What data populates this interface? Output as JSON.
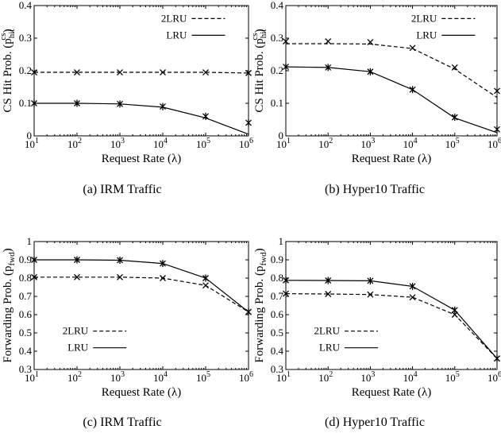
{
  "chart_data": [
    {
      "type": "line",
      "caption": "(a) IRM Traffic",
      "xlabel": "Request Rate (λ)",
      "ylabel": "CS Hit Prob. (p",
      "ylabel_sub": "hit",
      "ylabel_sup": "cs",
      "ylabel_close": ")",
      "x": [
        10,
        100,
        1000,
        10000,
        100000,
        1000000
      ],
      "x_ticks": [
        "10",
        "10",
        "10",
        "10",
        "10",
        "10"
      ],
      "x_tick_exp": [
        "1",
        "2",
        "3",
        "4",
        "5",
        "6"
      ],
      "xscale": "log",
      "xlim": [
        10,
        1000000
      ],
      "ylim": [
        0,
        0.4
      ],
      "y_ticks": [
        0,
        0.1,
        0.2,
        0.3,
        0.4
      ],
      "y_tick_labels": [
        "0",
        "0.1",
        "0.2",
        "0.3",
        "0.4"
      ],
      "legend_position": "top-right",
      "series": [
        {
          "name": "2LRU",
          "style": "dashed",
          "marker": "x",
          "values": [
            0.195,
            0.195,
            0.195,
            0.195,
            0.195,
            0.193
          ]
        },
        {
          "name": "LRU",
          "style": "solid",
          "marker": "asterisk",
          "values": [
            0.1,
            0.1,
            0.098,
            0.09,
            0.06,
            0.04
          ],
          "line_values": [
            0.1,
            0.1,
            0.098,
            0.088,
            0.055,
            0.005
          ]
        }
      ]
    },
    {
      "type": "line",
      "caption": "(b) Hyper10 Traffic",
      "xlabel": "Request Rate (λ)",
      "ylabel": "CS Hit Prob. (p",
      "ylabel_sub": "hit",
      "ylabel_sup": "cs",
      "ylabel_close": ")",
      "x": [
        10,
        100,
        1000,
        10000,
        100000,
        1000000
      ],
      "x_ticks": [
        "10",
        "10",
        "10",
        "10",
        "10",
        "10"
      ],
      "x_tick_exp": [
        "1",
        "2",
        "3",
        "4",
        "5",
        "6"
      ],
      "xscale": "log",
      "xlim": [
        10,
        1000000
      ],
      "ylim": [
        0,
        0.4
      ],
      "y_ticks": [
        0,
        0.1,
        0.2,
        0.3,
        0.4
      ],
      "y_tick_labels": [
        "0",
        "0.1",
        "0.2",
        "0.3",
        "0.4"
      ],
      "legend_position": "top-right",
      "series": [
        {
          "name": "2LRU",
          "style": "dashed",
          "marker": "x",
          "values": [
            0.29,
            0.29,
            0.288,
            0.27,
            0.21,
            0.138
          ],
          "line_values": [
            0.283,
            0.283,
            0.282,
            0.268,
            0.205,
            0.118
          ]
        },
        {
          "name": "LRU",
          "style": "solid",
          "marker": "asterisk",
          "values": [
            0.212,
            0.21,
            0.197,
            0.142,
            0.057,
            0.02
          ],
          "line_values": [
            0.212,
            0.21,
            0.197,
            0.142,
            0.055,
            0.01
          ]
        }
      ]
    },
    {
      "type": "line",
      "caption": "(c) IRM Traffic",
      "xlabel": "Request Rate (λ)",
      "ylabel": "Forwarding Prob. (p",
      "ylabel_sub": "fwd",
      "ylabel_sup": "",
      "ylabel_close": ")",
      "x": [
        10,
        100,
        1000,
        10000,
        100000,
        1000000
      ],
      "x_ticks": [
        "10",
        "10",
        "10",
        "10",
        "10",
        "10"
      ],
      "x_tick_exp": [
        "1",
        "2",
        "3",
        "4",
        "5",
        "6"
      ],
      "xscale": "log",
      "xlim": [
        10,
        1000000
      ],
      "ylim": [
        0.3,
        1
      ],
      "y_ticks": [
        0.3,
        0.4,
        0.5,
        0.6,
        0.7,
        0.8,
        0.9,
        1
      ],
      "y_tick_labels": [
        "0.3",
        "0.4",
        "0.5",
        "0.6",
        "0.7",
        "0.8",
        "0.9",
        "1"
      ],
      "legend_position": "bottom-left",
      "series": [
        {
          "name": "2LRU",
          "style": "dashed",
          "marker": "x",
          "values": [
            0.805,
            0.805,
            0.805,
            0.8,
            0.76,
            0.615
          ]
        },
        {
          "name": "LRU",
          "style": "solid",
          "marker": "asterisk",
          "values": [
            0.9,
            0.9,
            0.898,
            0.88,
            0.8,
            0.615
          ]
        }
      ]
    },
    {
      "type": "line",
      "caption": "(d) Hyper10 Traffic",
      "xlabel": "Request Rate (λ)",
      "ylabel": "Forwarding Prob. (p",
      "ylabel_sub": "fwd",
      "ylabel_sup": "",
      "ylabel_close": ")",
      "x": [
        10,
        100,
        1000,
        10000,
        100000,
        1000000
      ],
      "x_ticks": [
        "10",
        "10",
        "10",
        "10",
        "10",
        "10"
      ],
      "x_tick_exp": [
        "1",
        "2",
        "3",
        "4",
        "5",
        "6"
      ],
      "xscale": "log",
      "xlim": [
        10,
        1000000
      ],
      "ylim": [
        0.3,
        1
      ],
      "y_ticks": [
        0.3,
        0.4,
        0.5,
        0.6,
        0.7,
        0.8,
        0.9,
        1
      ],
      "y_tick_labels": [
        "0.3",
        "0.4",
        "0.5",
        "0.6",
        "0.7",
        "0.8",
        "0.9",
        "1"
      ],
      "legend_position": "bottom-left",
      "series": [
        {
          "name": "2LRU",
          "style": "dashed",
          "marker": "x",
          "values": [
            0.715,
            0.713,
            0.71,
            0.695,
            0.6,
            0.36
          ]
        },
        {
          "name": "LRU",
          "style": "solid",
          "marker": "asterisk",
          "values": [
            0.788,
            0.787,
            0.785,
            0.755,
            0.625,
            0.36
          ]
        }
      ]
    }
  ]
}
